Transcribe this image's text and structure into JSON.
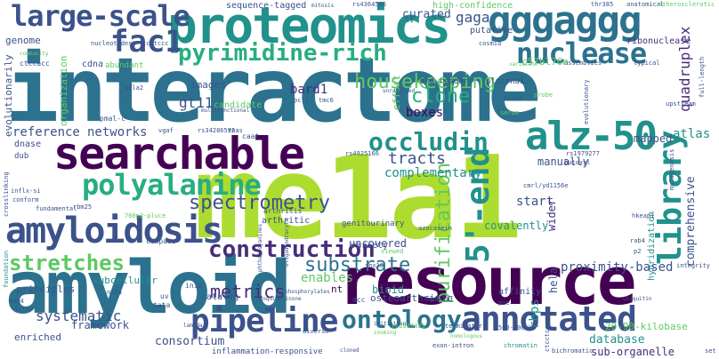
{
  "palette": {
    "deep_purple": "#440154",
    "purple": "#472d7b",
    "indigo": "#3b528b",
    "steel_blue": "#2c728e",
    "teal": "#21918c",
    "green_teal": "#28ae80",
    "green": "#5ec962",
    "lime": "#addc30",
    "yellow": "#fde725"
  },
  "words": [
    {
      "text": "interactome",
      "color": "#2c728e"
    },
    {
      "text": "me1a1",
      "color": "#addc30"
    },
    {
      "text": "resource",
      "color": "#440154"
    },
    {
      "text": "amyloid",
      "color": "#2c728e"
    },
    {
      "text": "proteomics",
      "color": "#21918c"
    },
    {
      "text": "searchable",
      "color": "#440154"
    },
    {
      "text": "gggaggg",
      "color": "#2c728e"
    },
    {
      "text": "amyloidosis",
      "color": "#3b528b"
    },
    {
      "text": "large-scale",
      "color": "#3b528b"
    },
    {
      "text": "fac1",
      "color": "#3b528b"
    },
    {
      "text": "alz-50",
      "color": "#21918c"
    },
    {
      "text": "pyrimidine-rich",
      "color": "#28ae80"
    },
    {
      "text": "nuclease",
      "color": "#2c728e"
    },
    {
      "text": "occludin",
      "color": "#21918c"
    },
    {
      "text": "polyalanine",
      "color": "#28ae80"
    },
    {
      "text": "annotated",
      "color": "#3b528b"
    },
    {
      "text": "pipeline",
      "color": "#3b528b"
    },
    {
      "text": "ontology",
      "color": "#2c728e"
    },
    {
      "text": "stretches",
      "color": "#5ec962"
    },
    {
      "text": "construction",
      "color": "#472d7b"
    },
    {
      "text": "library",
      "color": "#21918c"
    },
    {
      "text": "5'-end",
      "color": "#21918c"
    },
    {
      "text": "housekeeping",
      "color": "#5ec962"
    },
    {
      "text": "spectrometry",
      "color": "#3b528b"
    },
    {
      "text": "purification",
      "color": "#5ec962"
    },
    {
      "text": "substrate",
      "color": "#2c728e"
    },
    {
      "text": "clone",
      "color": "#28ae80"
    },
    {
      "text": "tracts",
      "color": "#3b528b"
    },
    {
      "text": "metrics",
      "color": "#472d7b"
    },
    {
      "text": "systematic",
      "color": "#3b528b"
    },
    {
      "text": "reference",
      "color": "#3b528b"
    },
    {
      "text": "networks",
      "color": "#3b528b"
    },
    {
      "text": "complementary",
      "color": "#21918c"
    },
    {
      "text": "proximity-based",
      "color": "#3b528b"
    },
    {
      "text": "quadruplex",
      "color": "#472d7b"
    },
    {
      "text": "atlas",
      "color": "#21918c"
    },
    {
      "text": "comprehensive",
      "color": "#3b528b"
    },
    {
      "text": "consortium",
      "color": "#3b528b"
    },
    {
      "text": "database",
      "color": "#21918c"
    },
    {
      "text": "sub-organelle",
      "color": "#472d7b"
    },
    {
      "text": "framework",
      "color": "#3b528b"
    },
    {
      "text": "enriched",
      "color": "#3b528b"
    },
    {
      "text": "osteoarthritic",
      "color": "#3b528b"
    },
    {
      "text": "inflammation-responsive",
      "color": "#3b528b"
    },
    {
      "text": "20-90-kilobase",
      "color": "#5ec962"
    },
    {
      "text": "bard1",
      "color": "#472d7b"
    },
    {
      "text": "gt11",
      "color": "#3b528b"
    },
    {
      "text": "gaga",
      "color": "#3b528b"
    },
    {
      "text": "curated",
      "color": "#3b528b"
    },
    {
      "text": "genome",
      "color": "#3b528b"
    },
    {
      "text": "candidate",
      "color": "#5ec962"
    },
    {
      "text": "boxes",
      "color": "#440154"
    },
    {
      "text": "rbps",
      "color": "#21918c"
    },
    {
      "text": "hela",
      "color": "#3b528b"
    },
    {
      "text": "manually",
      "color": "#3b528b"
    },
    {
      "text": "mapped",
      "color": "#3b528b"
    },
    {
      "text": "start",
      "color": "#3b528b"
    },
    {
      "text": "wider",
      "color": "#472d7b"
    },
    {
      "text": "enables",
      "color": "#5ec962"
    },
    {
      "text": "catalog",
      "color": "#3b528b"
    },
    {
      "text": "subcellular",
      "color": "#21918c"
    },
    {
      "text": "principles",
      "color": "#3b528b"
    },
    {
      "text": "evolutionarily",
      "color": "#3b528b"
    },
    {
      "text": "organization",
      "color": "#5ec962"
    },
    {
      "text": "uncovered",
      "color": "#3b528b"
    },
    {
      "text": "covalently",
      "color": "#21918c"
    },
    {
      "text": "genitourinary",
      "color": "#3b528b"
    },
    {
      "text": "affinity",
      "color": "#3b528b"
    },
    {
      "text": "bioid",
      "color": "#21918c"
    },
    {
      "text": "arthritic",
      "color": "#3b528b"
    },
    {
      "text": "nt",
      "color": "#440154"
    },
    {
      "text": "images",
      "color": "#3b528b"
    },
    {
      "text": "effort",
      "color": "#5ec962"
    },
    {
      "text": "putative",
      "color": "#3b528b"
    },
    {
      "text": "high-confidence",
      "color": "#5ec962"
    },
    {
      "text": "sequence-tagged",
      "color": "#3b528b"
    },
    {
      "text": "cdna",
      "color": "#3b528b"
    },
    {
      "text": "abundant",
      "color": "#5ec962"
    },
    {
      "text": "hybridization",
      "color": "#21918c"
    },
    {
      "text": "dnase",
      "color": "#3b528b"
    },
    {
      "text": "dub",
      "color": "#3b528b"
    },
    {
      "text": "variety",
      "color": "#3b528b"
    },
    {
      "text": "ribonuclease",
      "color": "#472d7b"
    },
    {
      "text": "c57bl76n",
      "color": "#5ec962"
    },
    {
      "text": "brd-reader",
      "color": "#3b528b"
    },
    {
      "text": "plncrna1",
      "color": "#3b528b"
    },
    {
      "text": "rs4364506",
      "color": "#3b528b"
    },
    {
      "text": "rs34286592",
      "color": "#3b528b"
    },
    {
      "text": "rs4925166",
      "color": "#3b528b"
    },
    {
      "text": "rs1979277",
      "color": "#3b528b"
    },
    {
      "text": "cmrl/yd1156e",
      "color": "#3b528b"
    },
    {
      "text": "butoxyl",
      "color": "#3b528b"
    },
    {
      "text": "rs2836425",
      "color": "#5ec962"
    },
    {
      "text": "azocasein",
      "color": "#3b528b"
    },
    {
      "text": "arthritis",
      "color": "#3b528b"
    },
    {
      "text": "nucleotides",
      "color": "#3b528b"
    },
    {
      "text": "ccctccc",
      "color": "#3b528b"
    },
    {
      "text": "ctccacc",
      "color": "#3b528b"
    },
    {
      "text": "vgaf",
      "color": "#3b528b"
    },
    {
      "text": "caat",
      "color": "#3b528b"
    },
    {
      "text": "tmc6",
      "color": "#3b528b"
    },
    {
      "text": "pcl1",
      "color": "#3b528b"
    },
    {
      "text": "pmal-c",
      "color": "#3b528b"
    },
    {
      "text": "mela2",
      "color": "#3b528b"
    },
    {
      "text": "cosmid",
      "color": "#3b528b"
    },
    {
      "text": "typical",
      "color": "#3b528b"
    },
    {
      "text": "upstream",
      "color": "#3b528b"
    },
    {
      "text": "mutagenesis",
      "color": "#3b528b"
    },
    {
      "text": "full-length",
      "color": "#3b528b"
    },
    {
      "text": "evolutionary",
      "color": "#3b528b"
    },
    {
      "text": "anatomical",
      "color": "#3b528b"
    },
    {
      "text": "atherosclerotic",
      "color": "#5ec962"
    },
    {
      "text": "thr385",
      "color": "#3b528b"
    },
    {
      "text": "mitosis",
      "color": "#3b528b"
    },
    {
      "text": "s1",
      "color": "#3b528b"
    },
    {
      "text": "community",
      "color": "#5ec962"
    },
    {
      "text": "variation",
      "color": "#5ec962"
    },
    {
      "text": "assemblies",
      "color": "#3b528b"
    },
    {
      "text": "probe",
      "color": "#5ec962"
    },
    {
      "text": "serum",
      "color": "#5ec962"
    },
    {
      "text": "tolhe",
      "color": "#3b528b"
    },
    {
      "text": "integrity",
      "color": "#3b528b"
    },
    {
      "text": "hkeap1",
      "color": "#3b528b"
    },
    {
      "text": "rab4",
      "color": "#3b528b"
    },
    {
      "text": "p2",
      "color": "#3b528b"
    },
    {
      "text": "compass",
      "color": "#3b528b"
    },
    {
      "text": "uv",
      "color": "#3b528b"
    },
    {
      "text": "tata",
      "color": "#3b528b"
    },
    {
      "text": "inib",
      "color": "#3b528b"
    },
    {
      "text": "dcc",
      "color": "#3b528b"
    },
    {
      "text": "mpex-bf",
      "color": "#3b528b"
    },
    {
      "text": "diverse",
      "color": "#3b528b"
    },
    {
      "text": "terminator",
      "color": "#3b528b"
    },
    {
      "text": "exon-intron",
      "color": "#3b528b"
    },
    {
      "text": "chromatin",
      "color": "#21918c"
    },
    {
      "text": "bichromatic",
      "color": "#3b528b"
    },
    {
      "text": "500-700-kb",
      "color": "#3b528b"
    },
    {
      "text": "foundation",
      "color": "#21918c"
    },
    {
      "text": "crosslinking",
      "color": "#3b528b"
    },
    {
      "text": "inflx-si",
      "color": "#3b528b"
    },
    {
      "text": "conform",
      "color": "#3b528b"
    },
    {
      "text": "fundamental",
      "color": "#3b528b"
    },
    {
      "text": "maz4",
      "color": "#3b528b"
    },
    {
      "text": "vector",
      "color": "#3b528b"
    },
    {
      "text": "n22a",
      "color": "#3b528b"
    },
    {
      "text": "rbm25",
      "color": "#3b528b"
    },
    {
      "text": "760p2-pluce",
      "color": "#5ec962"
    },
    {
      "text": "phthalocyanines",
      "color": "#3b528b"
    },
    {
      "text": "isoquinolinone",
      "color": "#3b528b"
    },
    {
      "text": "phosphorylates",
      "color": "#3b528b"
    },
    {
      "text": "oligodendrocyte",
      "color": "#3b528b"
    },
    {
      "text": "homologous",
      "color": "#5ec962"
    },
    {
      "text": "snx16",
      "color": "#3b528b"
    },
    {
      "text": "multifunctional",
      "color": "#3b528b"
    },
    {
      "text": "unravelled",
      "color": "#3b528b"
    },
    {
      "text": "rnas",
      "color": "#3b528b"
    },
    {
      "text": "lambda",
      "color": "#3b528b"
    },
    {
      "text": "viewed",
      "color": "#5ec962"
    },
    {
      "text": "ctcctcc",
      "color": "#3b528b"
    },
    {
      "text": "zooming",
      "color": "#5ec962"
    },
    {
      "text": "initiation",
      "color": "#3b528b"
    },
    {
      "text": "cloned",
      "color": "#3b528b"
    },
    {
      "text": "ubiquitin",
      "color": "#3b528b"
    },
    {
      "text": "pie",
      "color": "#3b528b"
    },
    {
      "text": "set",
      "color": "#3b528b"
    }
  ]
}
